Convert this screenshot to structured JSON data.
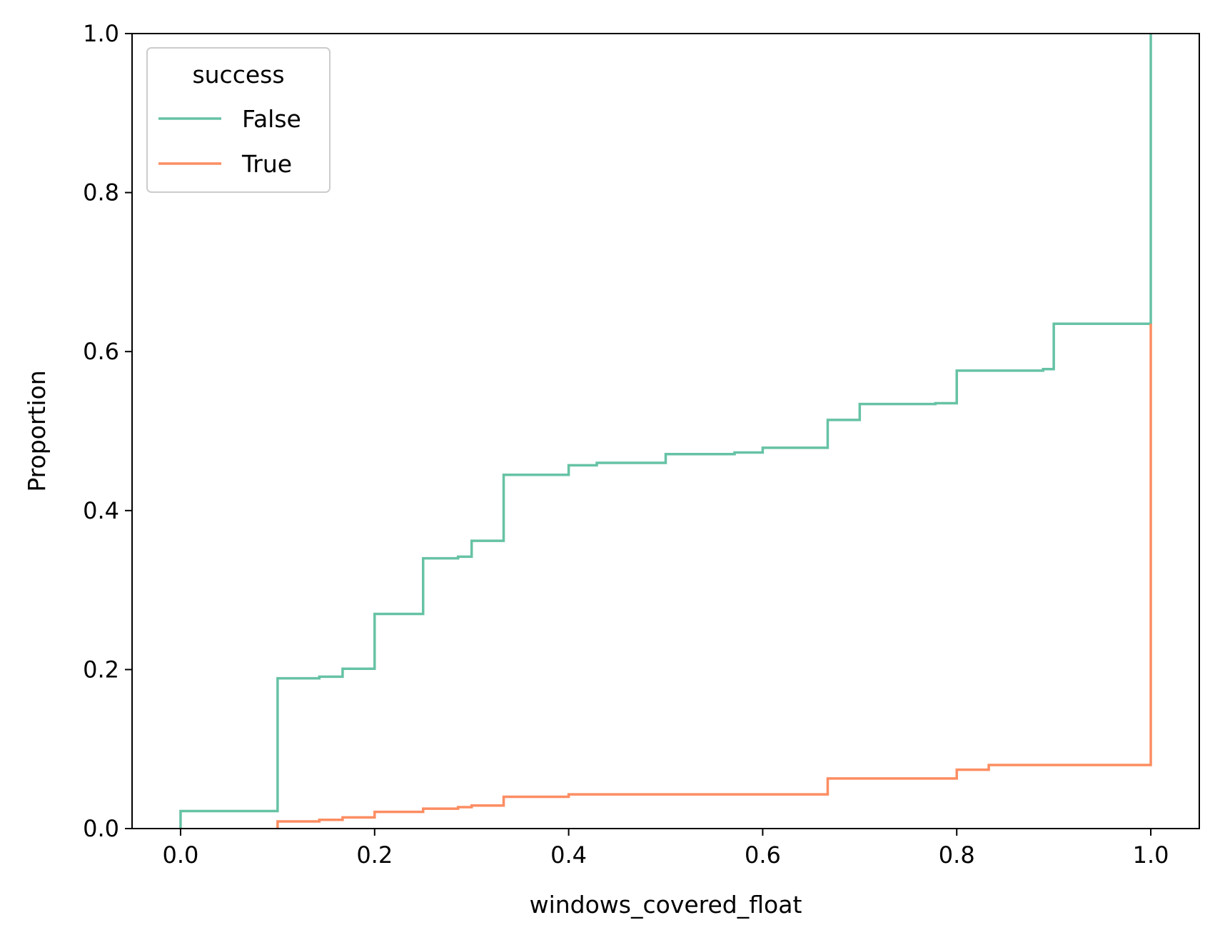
{
  "chart_data": {
    "type": "line",
    "step": true,
    "title": "",
    "xlabel": "windows_covered_float",
    "ylabel": "Proportion",
    "xlim": [
      -0.05,
      1.05
    ],
    "ylim": [
      0.0,
      1.0
    ],
    "xticks": [
      0.0,
      0.2,
      0.4,
      0.6,
      0.8,
      1.0
    ],
    "xtick_labels": [
      "0.0",
      "0.2",
      "0.4",
      "0.6",
      "0.8",
      "1.0"
    ],
    "yticks": [
      0.0,
      0.2,
      0.4,
      0.6,
      0.8,
      1.0
    ],
    "ytick_labels": [
      "0.0",
      "0.2",
      "0.4",
      "0.6",
      "0.8",
      "1.0"
    ],
    "grid": false,
    "legend": {
      "title": "success",
      "placement": "upper-left"
    },
    "series": [
      {
        "name": "False",
        "color": "#66c2a5",
        "x": [
          0.0,
          0.1,
          0.143,
          0.167,
          0.2,
          0.25,
          0.286,
          0.3,
          0.333,
          0.4,
          0.429,
          0.5,
          0.571,
          0.6,
          0.667,
          0.7,
          0.778,
          0.8,
          0.889,
          0.9,
          1.0
        ],
        "y": [
          0.022,
          0.189,
          0.191,
          0.201,
          0.27,
          0.34,
          0.342,
          0.362,
          0.445,
          0.457,
          0.46,
          0.471,
          0.473,
          0.479,
          0.514,
          0.534,
          0.535,
          0.576,
          0.578,
          0.635,
          1.0
        ]
      },
      {
        "name": "True",
        "color": "#fc8d62",
        "x": [
          0.1,
          0.143,
          0.167,
          0.2,
          0.25,
          0.286,
          0.3,
          0.333,
          0.4,
          0.667,
          0.8,
          0.833,
          1.0
        ],
        "y": [
          0.009,
          0.011,
          0.014,
          0.021,
          0.025,
          0.027,
          0.029,
          0.04,
          0.043,
          0.063,
          0.074,
          0.08,
          0.635
        ]
      }
    ]
  }
}
